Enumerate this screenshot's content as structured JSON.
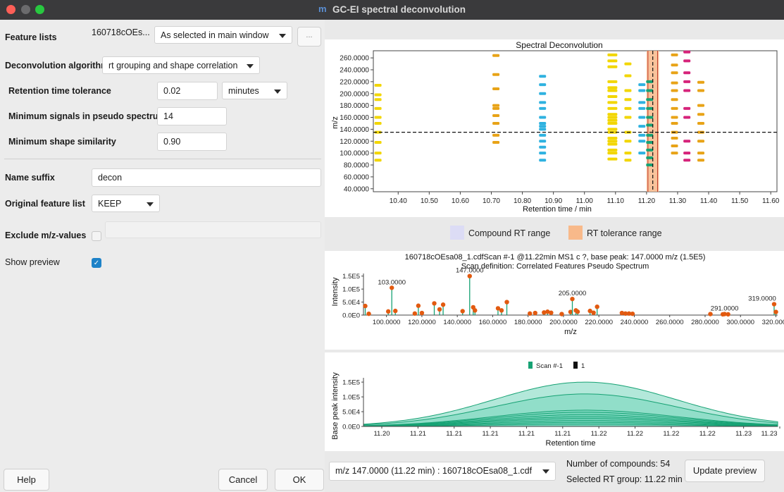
{
  "window": {
    "title": "GC-EI spectral deconvolution",
    "app_icon": "m"
  },
  "form": {
    "feature_lists": {
      "label": "Feature lists",
      "value": "160718cOEs...",
      "mode": "As selected in main window",
      "browse": "..."
    },
    "deconvolution_algorithm": {
      "label": "Deconvolution algorithm",
      "value": "rt grouping and shape correlation"
    },
    "rt_tolerance": {
      "label": "Retention time tolerance",
      "value": "0.02",
      "unit": "minutes"
    },
    "min_signals": {
      "label": "Minimum signals in pseudo spectrum",
      "value": "14"
    },
    "min_shape": {
      "label": "Minimum shape similarity",
      "value": "0.90"
    },
    "name_suffix": {
      "label": "Name suffix",
      "value": "decon"
    },
    "original_feature_list": {
      "label": "Original feature list",
      "value": "KEEP"
    },
    "exclude_mz": {
      "label": "Exclude m/z-values",
      "checked": false,
      "value": ""
    },
    "show_preview": {
      "label": "Show preview",
      "checked": true
    }
  },
  "buttons": {
    "help": "Help",
    "cancel": "Cancel",
    "ok": "OK",
    "update_preview": "Update preview"
  },
  "legend_ranges": {
    "compound": "Compound RT range",
    "tolerance": "RT tolerance range",
    "compound_color": "#dcdcf5",
    "tolerance_color": "#f8b98a"
  },
  "bottom": {
    "selector": "m/z 147.0000 (11.22 min) : 160718cOEsa08_1.cdf",
    "num_compounds": "Number of compounds: 54",
    "selected_rt": "Selected RT group: 11.22 min"
  },
  "chart_data": [
    {
      "type": "scatter",
      "title": "Spectral Deconvolution",
      "xlabel": "Retention time / min",
      "ylabel": "m/z",
      "xlim": [
        10.32,
        11.62
      ],
      "ylim": [
        35,
        272
      ],
      "xticks": [
        "10.40",
        "10.50",
        "10.60",
        "10.70",
        "10.80",
        "10.90",
        "11.00",
        "11.10",
        "11.20",
        "11.30",
        "11.40",
        "11.50",
        "11.60"
      ],
      "yticks": [
        "40.0000",
        "60.0000",
        "80.0000",
        "100.0000",
        "120.0000",
        "140.0000",
        "160.0000",
        "180.0000",
        "200.0000",
        "220.0000",
        "240.0000",
        "260.0000"
      ],
      "hline_mz": 135,
      "selected_rt": 11.22,
      "tolerance_range": [
        11.2,
        11.24
      ],
      "clusters": [
        {
          "rt": 10.335,
          "color": "#f2d600",
          "mz": [
            88,
            100,
            118,
            135,
            150,
            160,
            175,
            190,
            198,
            214
          ]
        },
        {
          "rt": 10.715,
          "color": "#e8a317",
          "mz": [
            118,
            130,
            150,
            163,
            175,
            180,
            208,
            232,
            264
          ]
        },
        {
          "rt": 10.865,
          "color": "#2fb2e0",
          "mz": [
            88,
            100,
            110,
            120,
            130,
            140,
            145,
            150,
            160,
            175,
            185,
            200,
            215,
            229
          ]
        },
        {
          "rt": 11.09,
          "color": "#f2d600",
          "mz": [
            90,
            100,
            105,
            115,
            120,
            125,
            135,
            140,
            150,
            155,
            160,
            165,
            175,
            185,
            195,
            205,
            210,
            220,
            245,
            255,
            265
          ]
        },
        {
          "rt": 11.14,
          "color": "#f2d600",
          "mz": [
            88,
            100,
            120,
            135,
            160,
            175,
            190,
            205,
            230,
            250
          ]
        },
        {
          "rt": 11.185,
          "color": "#2fb2e0",
          "mz": [
            100,
            120,
            130,
            145,
            160,
            175,
            185,
            205,
            215
          ]
        },
        {
          "rt": 11.21,
          "color": "#17a274",
          "mz": [
            80,
            92,
            105,
            118,
            130,
            147,
            160,
            175,
            190,
            205,
            220
          ]
        },
        {
          "rt": 11.29,
          "color": "#e8a317",
          "mz": [
            100,
            112,
            125,
            135,
            150,
            160,
            175,
            190,
            205,
            218,
            235,
            248,
            265
          ]
        },
        {
          "rt": 11.33,
          "color": "#d6237a",
          "mz": [
            88,
            100,
            120,
            160,
            175,
            205,
            220,
            235,
            255,
            270
          ]
        },
        {
          "rt": 11.375,
          "color": "#e8a317",
          "mz": [
            88,
            100,
            120,
            135,
            150,
            165,
            180,
            205,
            219
          ]
        }
      ]
    },
    {
      "type": "bar",
      "title": "160718cOEsa08_1.cdfScan #-1 @11.22min MS1 c ?, base peak: 147.0000 m/z (1.5E5)",
      "subtitle": "Scan definition: Correlated Features Pseudo Spectrum",
      "xlabel": "m/z",
      "ylabel": "Intensity",
      "xlim": [
        87,
        321
      ],
      "ylim": [
        0,
        160000
      ],
      "xticks": [
        "100.0000",
        "120.0000",
        "140.0000",
        "160.0000",
        "180.0000",
        "200.0000",
        "220.0000",
        "240.0000",
        "260.0000",
        "280.0000",
        "300.0000",
        "320.0000"
      ],
      "yticks": [
        "0.0E0",
        "5.0E4",
        "1.0E5",
        "1.5E5"
      ],
      "peak_labels": [
        "103.0000",
        "147.0000",
        "205.0000",
        "291.0000",
        "319.0000"
      ],
      "stem_color": "#17a274",
      "point_color": "#e25a10",
      "x": [
        88,
        90,
        101,
        103,
        105,
        116,
        118,
        120,
        127,
        130,
        132,
        143,
        147,
        149,
        150,
        163,
        165,
        168,
        181,
        184,
        189,
        191,
        193,
        199,
        204,
        205,
        207,
        208,
        215,
        217,
        219,
        233,
        235,
        237,
        239,
        283,
        290,
        291,
        293,
        319,
        320
      ],
      "values": [
        35000,
        5000,
        14000,
        105000,
        16000,
        6000,
        36000,
        8000,
        45000,
        22000,
        40000,
        15000,
        150000,
        30000,
        18000,
        26000,
        18000,
        50000,
        6000,
        8000,
        10000,
        13000,
        9000,
        4000,
        12000,
        62000,
        18000,
        13000,
        16000,
        9000,
        32000,
        8000,
        6000,
        6000,
        5000,
        4000,
        3000,
        4000,
        3000,
        42000,
        12000
      ]
    },
    {
      "type": "area",
      "xlabel": "Retention time",
      "ylabel": "Base peak intensity",
      "xlim": [
        11.199,
        11.2345
      ],
      "ylim": [
        0,
        155000
      ],
      "xticks": [
        "11.20",
        "11.21",
        "11.21",
        "11.21",
        "11.21",
        "11.21",
        "11.22",
        "11.22",
        "11.22",
        "11.22",
        "11.23",
        "11.23"
      ],
      "yticks": [
        "0.0E0",
        "5.0E4",
        "1.0E5",
        "1.5E5"
      ],
      "legend": [
        {
          "label": "Scan #-1",
          "color": "#17a274"
        },
        {
          "label": "1",
          "color": "#111111"
        }
      ],
      "center": 11.218,
      "sigma": 0.0078,
      "amplitudes": [
        150000,
        110000,
        55000,
        48000,
        40000,
        33000,
        27000,
        20000,
        14000,
        8000
      ],
      "fill": "#74d6bb",
      "line": "#17a274"
    }
  ]
}
